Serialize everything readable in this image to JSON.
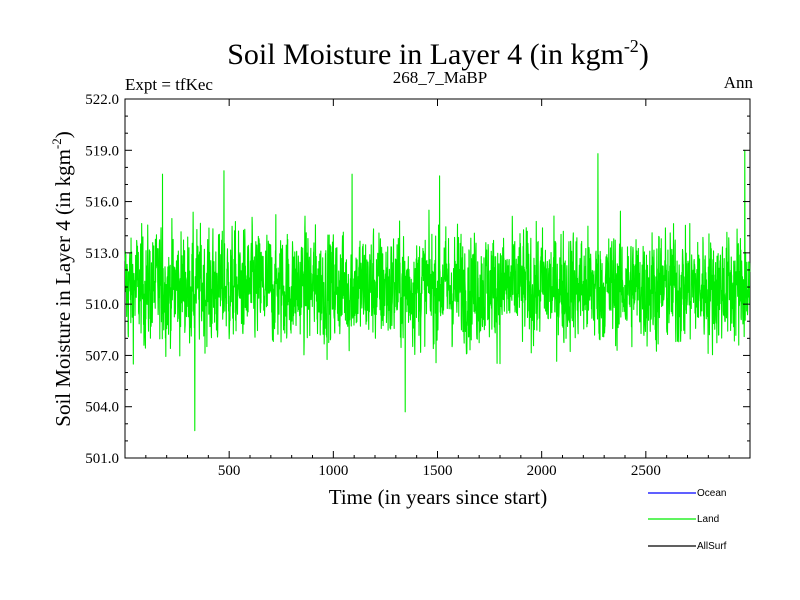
{
  "chart_data": {
    "type": "line",
    "title_main": "Soil Moisture in Layer 4 (in kgm",
    "title_sup": "-2",
    "title_close": ")",
    "experiment": "Expt = tfKec",
    "subtitle": "268_7_MaBP",
    "season": "Ann",
    "xlabel": "Time (in years since start)",
    "ylabel_main": "Soil Moisture in Layer 4 (in kgm",
    "ylabel_sup": "-2",
    "ylabel_close": ")",
    "xlim": [
      0,
      3000
    ],
    "ylim": [
      501.0,
      522.0
    ],
    "xticks": [
      500,
      1000,
      1500,
      2000,
      2500
    ],
    "xtick_labels": [
      "500",
      "1000",
      "1500",
      "2000",
      "2500"
    ],
    "yticks": [
      501.0,
      504.0,
      507.0,
      510.0,
      513.0,
      516.0,
      519.0,
      522.0
    ],
    "ytick_labels": [
      "501.0",
      "504.0",
      "507.0",
      "510.0",
      "513.0",
      "516.0",
      "519.0",
      "522.0"
    ],
    "series": [
      {
        "name": "Ocean",
        "color": "#0000ff",
        "values": []
      },
      {
        "name": "Land",
        "color": "#00ee00",
        "mean": 511.0,
        "min": 502.5,
        "max": 519.0,
        "notable_points": [
          [
            180,
            517.6
          ],
          [
            335,
            502.6
          ],
          [
            475,
            517.8
          ],
          [
            1090,
            517.6
          ],
          [
            1345,
            503.7
          ],
          [
            1510,
            517.5
          ],
          [
            2270,
            518.8
          ],
          [
            2975,
            519.0
          ]
        ],
        "values": []
      },
      {
        "name": "AllSurf",
        "color": "#000000",
        "values": []
      }
    ]
  }
}
